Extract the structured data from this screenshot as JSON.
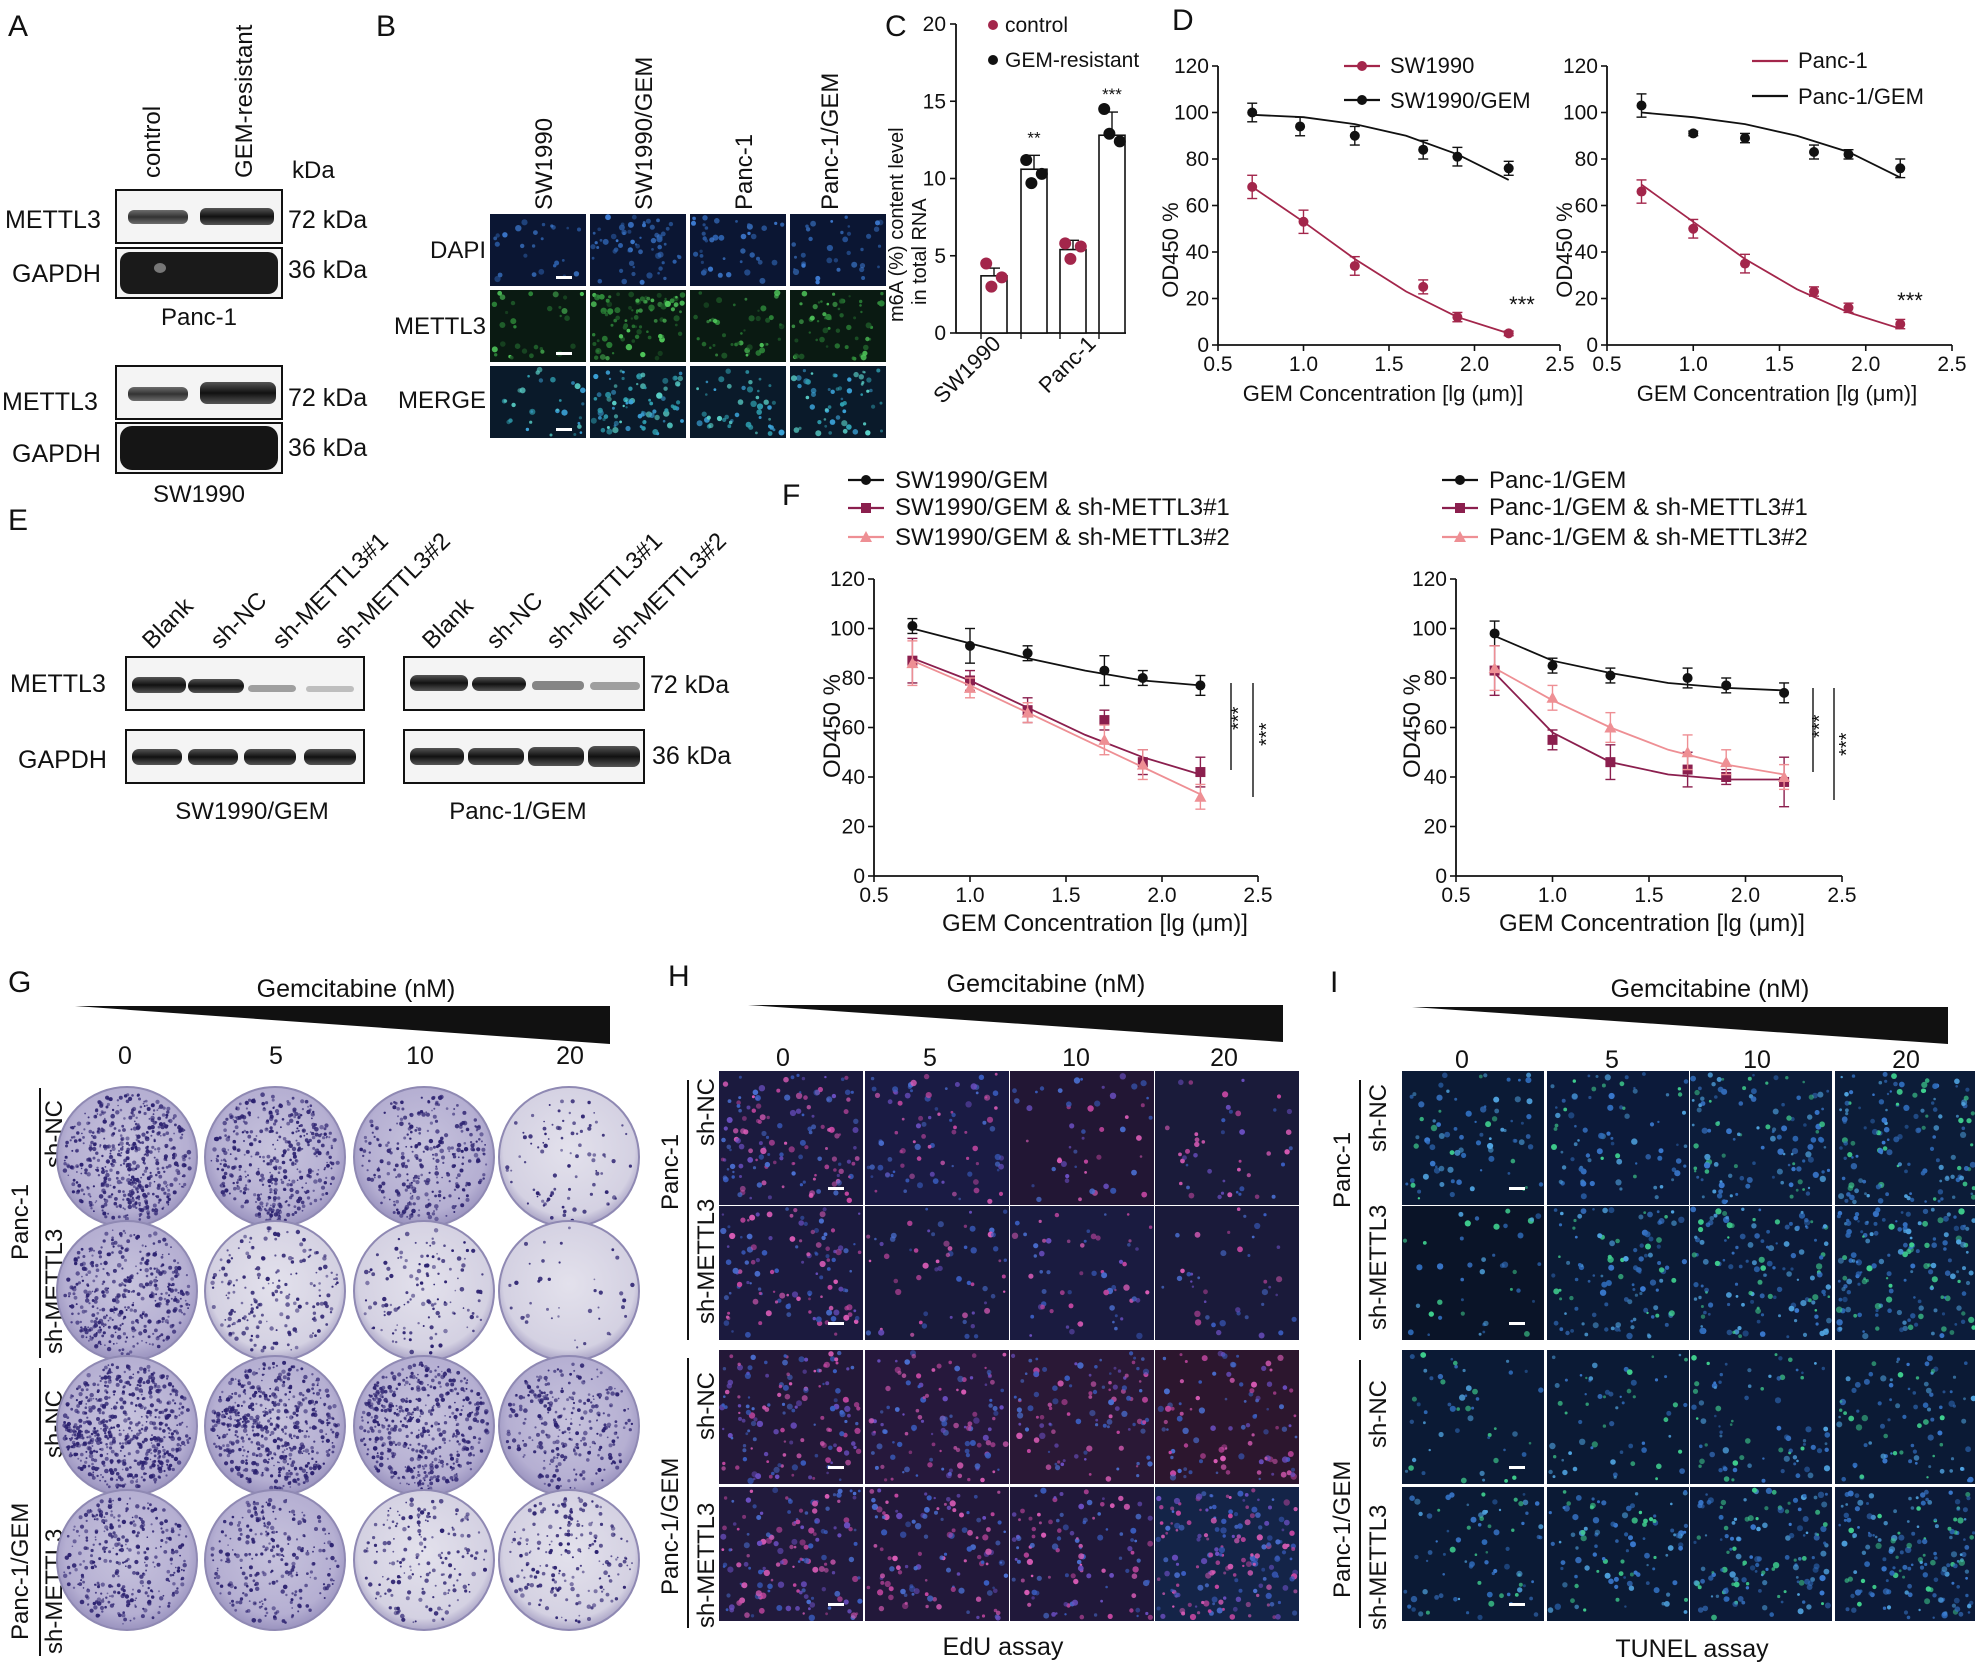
{
  "panel_letters": {
    "a": "A",
    "b": "B",
    "c": "C",
    "d": "D",
    "e": "E",
    "f": "F",
    "g": "G",
    "h": "H",
    "i": "I"
  },
  "panelA": {
    "lanes": [
      "control",
      "GEM-resistant"
    ],
    "unit": "kDa",
    "blots": [
      {
        "cell_line": "Panc-1",
        "rows": [
          {
            "protein": "METTL3",
            "size": "72 kDa"
          },
          {
            "protein": "GAPDH",
            "size": "36 kDa"
          }
        ]
      },
      {
        "cell_line": "SW1990",
        "rows": [
          {
            "protein": "METTL3",
            "size": "72 kDa"
          },
          {
            "protein": "GAPDH",
            "size": "36 kDa"
          }
        ]
      }
    ]
  },
  "panelB": {
    "columns": [
      "SW1990",
      "SW1990/GEM",
      "Panc-1",
      "Panc-1/GEM"
    ],
    "rows": [
      "DAPI",
      "METTL3",
      "MERGE"
    ]
  },
  "panelE": {
    "lanes": [
      "Blank",
      "sh-NC",
      "sh-METTL3#1",
      "sh-METTL3#2"
    ],
    "rows": [
      {
        "protein": "METTL3",
        "size": "72 kDa"
      },
      {
        "protein": "GAPDH",
        "size": "36 kDa"
      }
    ],
    "groups": [
      "SW1990/GEM",
      "Panc-1/GEM"
    ]
  },
  "panelG": {
    "title": "Gemcitabine (nM)",
    "doses": [
      "0",
      "5",
      "10",
      "20"
    ],
    "group_labels": [
      "Panc-1",
      "Panc-1/GEM"
    ],
    "row_labels": [
      "sh-NC",
      "sh-METTL3",
      "sh-NC",
      "sh-METTL3"
    ]
  },
  "panelH": {
    "title": "Gemcitabine (nM)",
    "doses": [
      "0",
      "5",
      "10",
      "20"
    ],
    "group_labels": [
      "Panc-1",
      "Panc-1/GEM"
    ],
    "row_labels": [
      "sh-NC",
      "sh-METTL3",
      "sh-NC",
      "sh-METTL3"
    ],
    "caption": "EdU assay"
  },
  "panelI": {
    "title": "Gemcitabine (nM)",
    "doses": [
      "0",
      "5",
      "10",
      "20"
    ],
    "group_labels": [
      "Panc-1",
      "Panc-1/GEM"
    ],
    "row_labels": [
      "sh-NC",
      "sh-METTL3",
      "sh-NC",
      "sh-METTL3"
    ],
    "caption": "TUNEL assay"
  },
  "chart_data": [
    {
      "id": "C",
      "type": "bar",
      "ylabel_line1": "m6A (%) content level",
      "ylabel_line2": "in total RNA",
      "ylim": [
        0,
        20
      ],
      "yticks": [
        0,
        5,
        10,
        15,
        20
      ],
      "xtick_labels": [
        "SW1990",
        "Panc-1"
      ],
      "legend": [
        "control",
        "GEM-resistant"
      ],
      "colors": {
        "control": "#a3264b",
        "GEM-resistant": "#111111"
      },
      "bars": [
        {
          "group": "SW1990",
          "series": "control",
          "value": 3.7,
          "err": 0.5,
          "points": [
            4.5,
            3.6,
            3.0
          ],
          "sig": ""
        },
        {
          "group": "SW1990",
          "series": "GEM-resistant",
          "value": 10.6,
          "err": 0.9,
          "points": [
            11.2,
            10.3,
            9.7
          ],
          "sig": "**"
        },
        {
          "group": "Panc-1",
          "series": "control",
          "value": 5.4,
          "err": 0.6,
          "points": [
            5.8,
            5.6,
            4.8
          ],
          "sig": ""
        },
        {
          "group": "Panc-1",
          "series": "GEM-resistant",
          "value": 12.8,
          "err": 1.5,
          "points": [
            14.5,
            12.4,
            12.9
          ],
          "sig": "***"
        }
      ]
    },
    {
      "id": "D-left",
      "type": "line",
      "xlabel": "GEM Concentration [lg (μm)]",
      "ylabel": "OD450 %",
      "xlim": [
        0.5,
        2.5
      ],
      "ylim": [
        0,
        120
      ],
      "xticks": [
        0.5,
        1.0,
        1.5,
        2.0,
        2.5
      ],
      "yticks": [
        0,
        20,
        40,
        60,
        80,
        100,
        120
      ],
      "series": [
        {
          "name": "SW1990",
          "color": "#a3264b",
          "x": [
            0.7,
            1.0,
            1.3,
            1.7,
            1.9,
            2.2
          ],
          "y": [
            68,
            53,
            34,
            25,
            12,
            5
          ],
          "err": [
            5,
            5,
            4,
            3,
            2,
            1
          ],
          "fit": [
            [
              0.7,
              68
            ],
            [
              1.0,
              53
            ],
            [
              1.3,
              37
            ],
            [
              1.6,
              23
            ],
            [
              1.9,
              12
            ],
            [
              2.2,
              5
            ]
          ]
        },
        {
          "name": "SW1990/GEM",
          "color": "#111111",
          "x": [
            0.7,
            0.98,
            1.3,
            1.7,
            1.9,
            2.2
          ],
          "y": [
            100,
            94,
            90,
            84,
            81,
            76
          ],
          "err": [
            4,
            4,
            4,
            4,
            4,
            3
          ],
          "fit": [
            [
              0.7,
              99
            ],
            [
              1.0,
              98
            ],
            [
              1.3,
              95
            ],
            [
              1.6,
              90
            ],
            [
              1.9,
              82
            ],
            [
              2.2,
              71
            ]
          ]
        }
      ],
      "annotation": "***"
    },
    {
      "id": "D-right",
      "type": "line",
      "xlabel": "GEM Concentration [lg (μm)]",
      "ylabel": "OD450 %",
      "xlim": [
        0.5,
        2.5
      ],
      "ylim": [
        0,
        120
      ],
      "xticks": [
        0.5,
        1.0,
        1.5,
        2.0,
        2.5
      ],
      "yticks": [
        0,
        20,
        40,
        60,
        80,
        100,
        120
      ],
      "series": [
        {
          "name": "Panc-1",
          "color": "#a3264b",
          "x": [
            0.7,
            1.0,
            1.3,
            1.7,
            1.9,
            2.2
          ],
          "y": [
            66,
            50,
            35,
            23,
            16,
            9
          ],
          "err": [
            5,
            4,
            4,
            2,
            2,
            2
          ],
          "fit": [
            [
              0.7,
              69
            ],
            [
              1.0,
              53
            ],
            [
              1.3,
              37
            ],
            [
              1.6,
              24
            ],
            [
              1.9,
              14
            ],
            [
              2.2,
              7
            ]
          ]
        },
        {
          "name": "Panc-1/GEM",
          "color": "#111111",
          "x": [
            0.7,
            1.0,
            1.3,
            1.7,
            1.9,
            2.2
          ],
          "y": [
            103,
            91,
            89,
            83,
            82,
            76
          ],
          "err": [
            5,
            1,
            2,
            3,
            2,
            4
          ],
          "fit": [
            [
              0.7,
              100
            ],
            [
              1.0,
              98
            ],
            [
              1.3,
              95
            ],
            [
              1.6,
              90
            ],
            [
              1.9,
              83
            ],
            [
              2.2,
              72
            ]
          ]
        }
      ],
      "annotation": "***"
    },
    {
      "id": "F-left",
      "type": "line",
      "xlabel": "GEM Concentration [lg (μm)]",
      "ylabel": "OD450 %",
      "xlim": [
        0.5,
        2.5
      ],
      "ylim": [
        0,
        120
      ],
      "xticks": [
        0.5,
        1.0,
        1.5,
        2.0,
        2.5
      ],
      "yticks": [
        0,
        20,
        40,
        60,
        80,
        100,
        120
      ],
      "series": [
        {
          "name": "SW1990/GEM",
          "color": "#111111",
          "marker": "circle",
          "x": [
            0.7,
            1.0,
            1.3,
            1.7,
            1.9,
            2.2
          ],
          "y": [
            101,
            93,
            90,
            83,
            80,
            77
          ],
          "err": [
            3,
            7,
            3,
            6,
            3,
            4
          ],
          "fit": [
            [
              0.7,
              100
            ],
            [
              1.0,
              94
            ],
            [
              1.3,
              88
            ],
            [
              1.6,
              83
            ],
            [
              1.9,
              79
            ],
            [
              2.2,
              77
            ]
          ]
        },
        {
          "name": "SW1990/GEM & sh-METTL3#1",
          "color": "#8b1f4e",
          "marker": "square",
          "x": [
            0.7,
            1.0,
            1.3,
            1.7,
            1.9,
            2.2
          ],
          "y": [
            87,
            79,
            67,
            63,
            46,
            42
          ],
          "err": [
            9,
            4,
            5,
            4,
            5,
            6
          ],
          "fit": [
            [
              0.7,
              88
            ],
            [
              1.0,
              79
            ],
            [
              1.3,
              68
            ],
            [
              1.6,
              57
            ],
            [
              1.9,
              48
            ],
            [
              2.2,
              41
            ]
          ]
        },
        {
          "name": "SW1990/GEM & sh-METTL3#2",
          "color": "#ee8f94",
          "marker": "triangle",
          "x": [
            0.7,
            1.0,
            1.3,
            1.7,
            1.9,
            2.2
          ],
          "y": [
            86,
            76,
            66,
            55,
            45,
            32
          ],
          "err": [
            9,
            4,
            4,
            6,
            6,
            5
          ],
          "fit": [
            [
              0.7,
              87
            ],
            [
              1.0,
              77
            ],
            [
              1.3,
              66
            ],
            [
              1.6,
              55
            ],
            [
              1.9,
              44
            ],
            [
              2.2,
              33
            ]
          ]
        }
      ],
      "sig": [
        "***",
        "***"
      ]
    },
    {
      "id": "F-right",
      "type": "line",
      "xlabel": "GEM Concentration [lg (μm)]",
      "ylabel": "OD450 %",
      "xlim": [
        0.5,
        2.5
      ],
      "ylim": [
        0,
        120
      ],
      "xticks": [
        0.5,
        1.0,
        1.5,
        2.0,
        2.5
      ],
      "yticks": [
        0,
        20,
        40,
        60,
        80,
        100,
        120
      ],
      "series": [
        {
          "name": "Panc-1/GEM",
          "color": "#111111",
          "marker": "circle",
          "x": [
            0.7,
            1.0,
            1.3,
            1.7,
            1.9,
            2.2
          ],
          "y": [
            98,
            85,
            81,
            80,
            77,
            74
          ],
          "err": [
            5,
            3,
            3,
            4,
            3,
            4
          ],
          "fit": [
            [
              0.7,
              97
            ],
            [
              1.0,
              87
            ],
            [
              1.3,
              82
            ],
            [
              1.6,
              78
            ],
            [
              1.9,
              76
            ],
            [
              2.2,
              75
            ]
          ]
        },
        {
          "name": "Panc-1/GEM & sh-METTL3#1",
          "color": "#8b1f4e",
          "marker": "square",
          "x": [
            0.7,
            1.0,
            1.3,
            1.7,
            1.9,
            2.2
          ],
          "y": [
            83,
            55,
            46,
            43,
            40,
            38
          ],
          "err": [
            10,
            4,
            7,
            7,
            3,
            10
          ],
          "fit": [
            [
              0.7,
              82
            ],
            [
              1.0,
              58
            ],
            [
              1.3,
              46
            ],
            [
              1.6,
              41
            ],
            [
              1.9,
              39
            ],
            [
              2.2,
              39
            ]
          ]
        },
        {
          "name": "Panc-1/GEM & sh-METTL3#2",
          "color": "#ee8f94",
          "marker": "triangle",
          "x": [
            0.7,
            1.0,
            1.3,
            1.7,
            1.9,
            2.2
          ],
          "y": [
            84,
            72,
            60,
            50,
            46,
            40
          ],
          "err": [
            9,
            5,
            6,
            7,
            5,
            5
          ],
          "fit": [
            [
              0.7,
              84
            ],
            [
              1.0,
              71
            ],
            [
              1.3,
              60
            ],
            [
              1.6,
              51
            ],
            [
              1.9,
              45
            ],
            [
              2.2,
              41
            ]
          ]
        }
      ],
      "sig": [
        "***",
        "***"
      ]
    }
  ]
}
